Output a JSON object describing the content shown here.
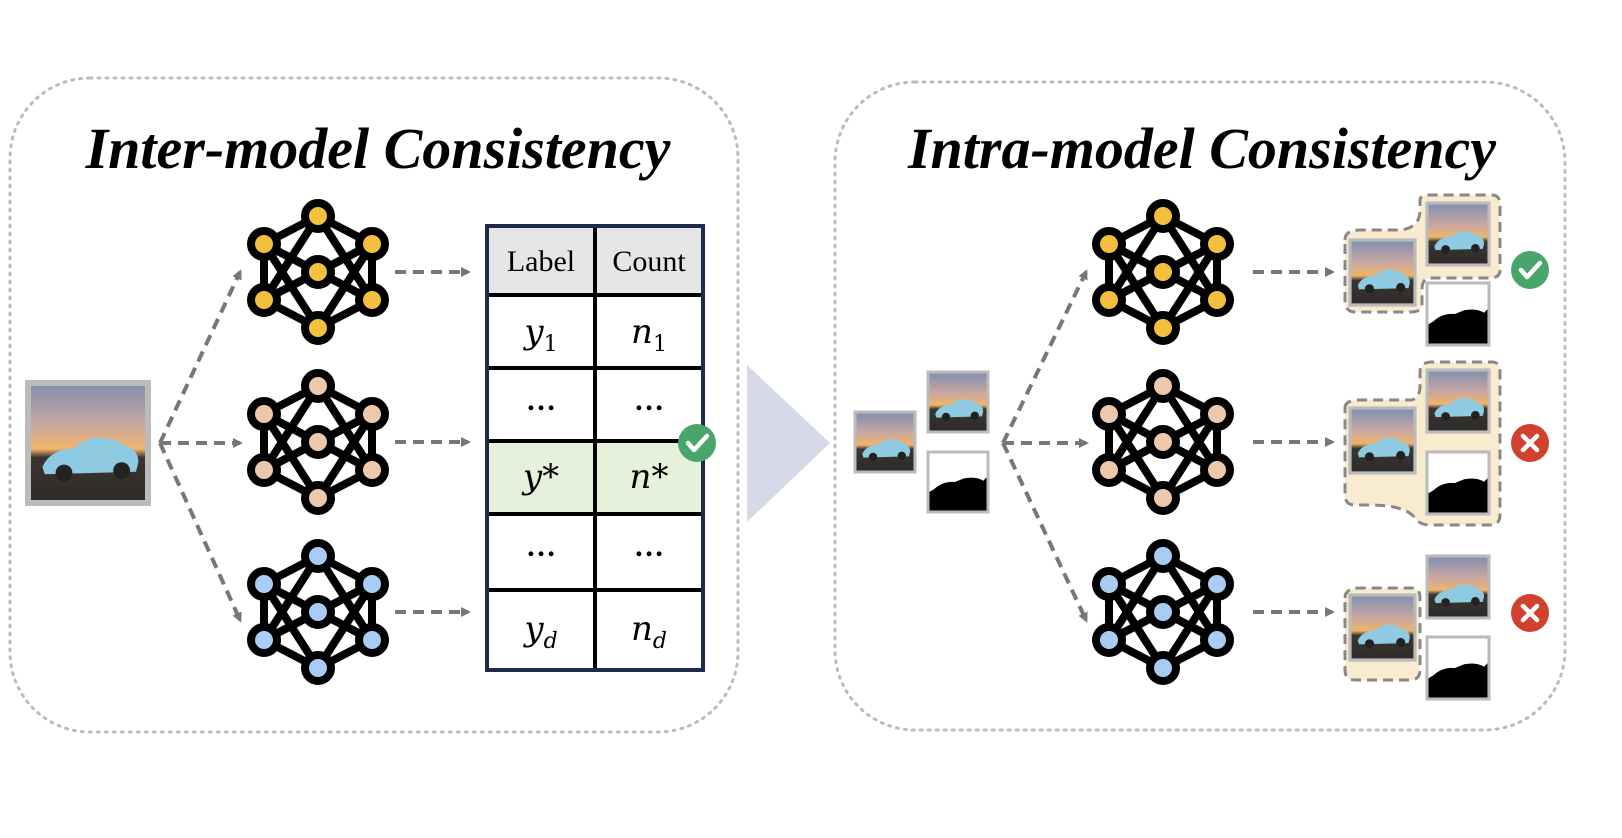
{
  "left_panel": {
    "title": "Inter-model Consistency"
  },
  "right_panel": {
    "title": "Intra-model Consistency"
  },
  "table": {
    "headers": [
      "Label",
      "Count"
    ],
    "rows": [
      {
        "label": "y₁",
        "count": "n₁"
      },
      {
        "label": "…",
        "count": "…"
      },
      {
        "label": "y*",
        "count": "n*",
        "highlighted": true
      },
      {
        "label": "…",
        "count": "…"
      },
      {
        "label": "y_d",
        "count": "n_d"
      }
    ]
  },
  "models": [
    {
      "color": "#F3BF3E"
    },
    {
      "color": "#ECC8AD"
    },
    {
      "color": "#A9CCF2"
    }
  ],
  "results": [
    {
      "status": "check",
      "color": "#4AA56A"
    },
    {
      "status": "cross",
      "color": "#D2402F"
    },
    {
      "status": "cross",
      "color": "#D2402F"
    }
  ],
  "colors": {
    "highlight_row": "#E6F1DC",
    "header_bg": "#E6E6E6",
    "table_border": "#1F2A4A",
    "transition_arrow": "#D6D9E8",
    "selection_blob": "#F8EBD0"
  }
}
